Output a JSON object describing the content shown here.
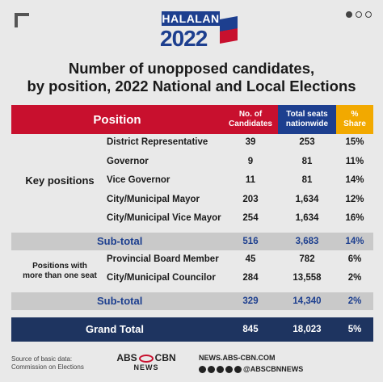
{
  "logo": {
    "top_text": "HALALAN",
    "year": "2022"
  },
  "title": "Number of unopposed candidates,\nby position, 2022 National and Local Elections",
  "chart_data": {
    "type": "table",
    "columns": [
      "Position",
      "No. of\nCandidates",
      "Total seats\nnationwide",
      "%\nShare"
    ],
    "groups": [
      {
        "label": "Key positions",
        "rows": [
          {
            "position": "District Representative",
            "candidates": "39",
            "seats": "253",
            "share": "15%"
          },
          {
            "position": "Governor",
            "candidates": "9",
            "seats": "81",
            "share": "11%"
          },
          {
            "position": "Vice Governor",
            "candidates": "11",
            "seats": "81",
            "share": "14%"
          },
          {
            "position": "City/Municipal Mayor",
            "candidates": "203",
            "seats": "1,634",
            "share": "12%"
          },
          {
            "position": "City/Municipal Vice Mayor",
            "candidates": "254",
            "seats": "1,634",
            "share": "16%"
          }
        ],
        "subtotal": {
          "label": "Sub-total",
          "candidates": "516",
          "seats": "3,683",
          "share": "14%"
        }
      },
      {
        "label": "Positions with\nmore than one seat",
        "rows": [
          {
            "position": "Provincial Board Member",
            "candidates": "45",
            "seats": "782",
            "share": "6%"
          },
          {
            "position": "City/Municipal Councilor",
            "candidates": "284",
            "seats": "13,558",
            "share": "2%"
          }
        ],
        "subtotal": {
          "label": "Sub-total",
          "candidates": "329",
          "seats": "14,340",
          "share": "2%"
        }
      }
    ],
    "grand_total": {
      "label": "Grand Total",
      "candidates": "845",
      "seats": "18,023",
      "share": "5%"
    }
  },
  "footer": {
    "source": "Source of basic data:\nCommission on Elections",
    "brand_main_left": "ABS",
    "brand_main_right": "CBN",
    "brand_sub": "NEWS",
    "url": "NEWS.ABS-CBN.COM",
    "handle": "@ABSCBNNEWS"
  },
  "colors": {
    "red": "#c8102e",
    "blue": "#1d3f8f",
    "gold": "#f2a900",
    "navy": "#1e3460"
  }
}
